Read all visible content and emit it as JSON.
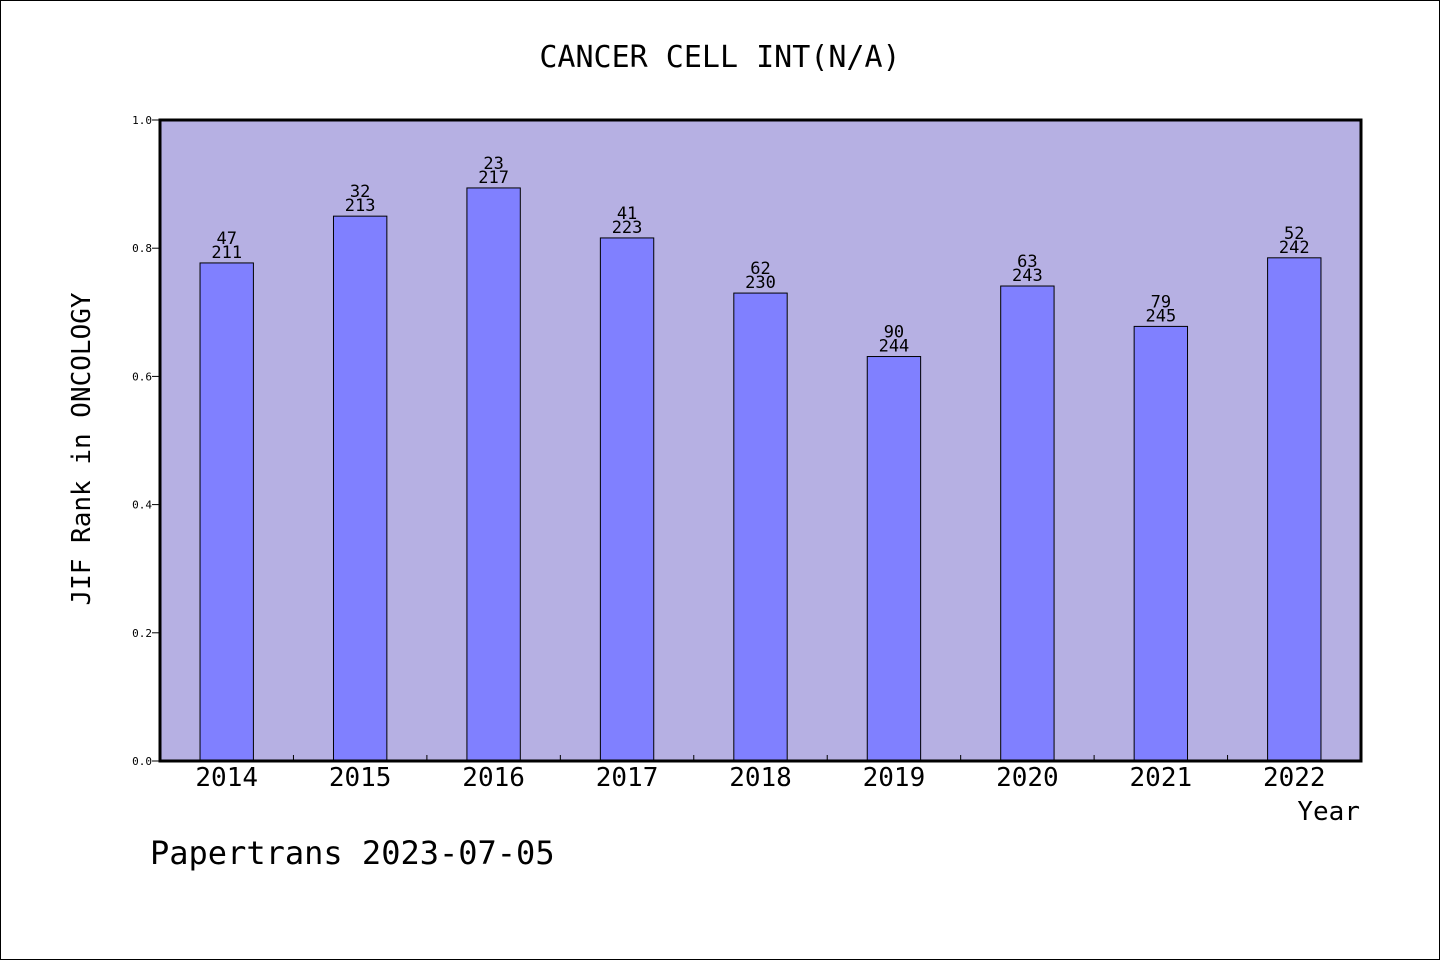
{
  "chart_data": {
    "type": "bar",
    "title": "CANCER CELL INT(N/A)",
    "ylabel": "JIF Rank in ONCOLOGY",
    "xlabel": "Year",
    "ylim": [
      0,
      1.0
    ],
    "yticks": [
      "0.0",
      "0.2",
      "0.4",
      "0.6",
      "0.8",
      "1.0"
    ],
    "categories": [
      "2014",
      "2015",
      "2016",
      "2017",
      "2018",
      "2019",
      "2020",
      "2021",
      "2022"
    ],
    "values": [
      0.777,
      0.85,
      0.894,
      0.816,
      0.73,
      0.631,
      0.741,
      0.678,
      0.785
    ],
    "rank": [
      "47",
      "32",
      "23",
      "41",
      "62",
      "90",
      "63",
      "79",
      "52"
    ],
    "total": [
      "211",
      "213",
      "217",
      "223",
      "230",
      "244",
      "243",
      "245",
      "242"
    ],
    "grid": false,
    "colors": {
      "plot_background": "#b6b0e3",
      "bar_fill": "#8080ff",
      "bar_stroke": "#000000"
    }
  },
  "footer": {
    "watermark": "Papertrans 2023-07-05"
  }
}
